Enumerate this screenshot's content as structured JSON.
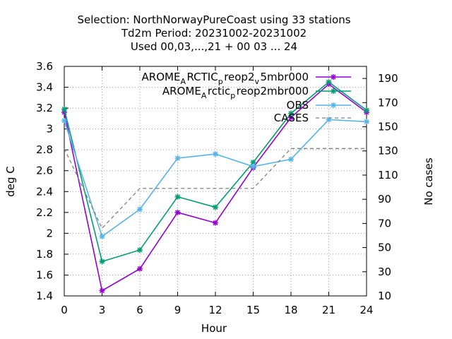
{
  "chart_data": {
    "type": "line",
    "title_lines": [
      "Selection: NorthNorwayPureCoast using    33 stations",
      "Td2m    Period: 20231002-20231002",
      "Used  00,03,...,21  + 00 03 ... 24"
    ],
    "xlabel": "Hour",
    "ylabel": "deg C",
    "y2label": "No cases",
    "xlim": [
      0,
      24
    ],
    "ylim": [
      1.4,
      3.6
    ],
    "y2lim": [
      10,
      200
    ],
    "x_ticks": [
      "0",
      "3",
      "6",
      "9",
      "12",
      "15",
      "18",
      "21",
      "24"
    ],
    "y_ticks": [
      "1.4",
      "1.6",
      "1.8",
      "2",
      "2.2",
      "2.4",
      "2.6",
      "2.8",
      "3",
      "3.2",
      "3.4",
      "3.6"
    ],
    "y2_ticks": [
      "10",
      "30",
      "50",
      "70",
      "90",
      "110",
      "130",
      "150",
      "170",
      "190"
    ],
    "grid": true,
    "legend_position": "top-right",
    "x": [
      0,
      3,
      6,
      9,
      12,
      15,
      18,
      21,
      24
    ],
    "series": [
      {
        "name": "AROME_ARCTIC_preop2_v5mbr000",
        "legend_main": [
          "AROME",
          "RCTIC",
          "reop2",
          "5mbr000"
        ],
        "legend_sub": [
          "A",
          "p",
          "v"
        ],
        "color": "#9400d3",
        "axis": "left",
        "values": [
          3.16,
          1.45,
          1.66,
          2.2,
          2.1,
          2.63,
          3.11,
          3.43,
          3.16
        ]
      },
      {
        "name": "AROME_Arctic_preop2mbr000",
        "legend_main": [
          "AROME",
          "rctic",
          "reop2mbr000"
        ],
        "legend_sub": [
          "A",
          "p"
        ],
        "color": "#009e73",
        "axis": "left",
        "values": [
          3.19,
          1.73,
          1.84,
          2.35,
          2.25,
          2.68,
          3.15,
          3.45,
          3.18
        ]
      },
      {
        "name": "OBS",
        "color": "#56b4e9",
        "axis": "left",
        "values": [
          3.08,
          1.97,
          2.23,
          2.72,
          2.76,
          2.64,
          2.71,
          3.09,
          3.07
        ]
      },
      {
        "name": "CASES",
        "color": "#808080",
        "axis": "right",
        "dashed": true,
        "values": [
          132,
          66,
          99,
          99,
          99,
          99,
          132,
          132,
          132
        ]
      }
    ]
  }
}
